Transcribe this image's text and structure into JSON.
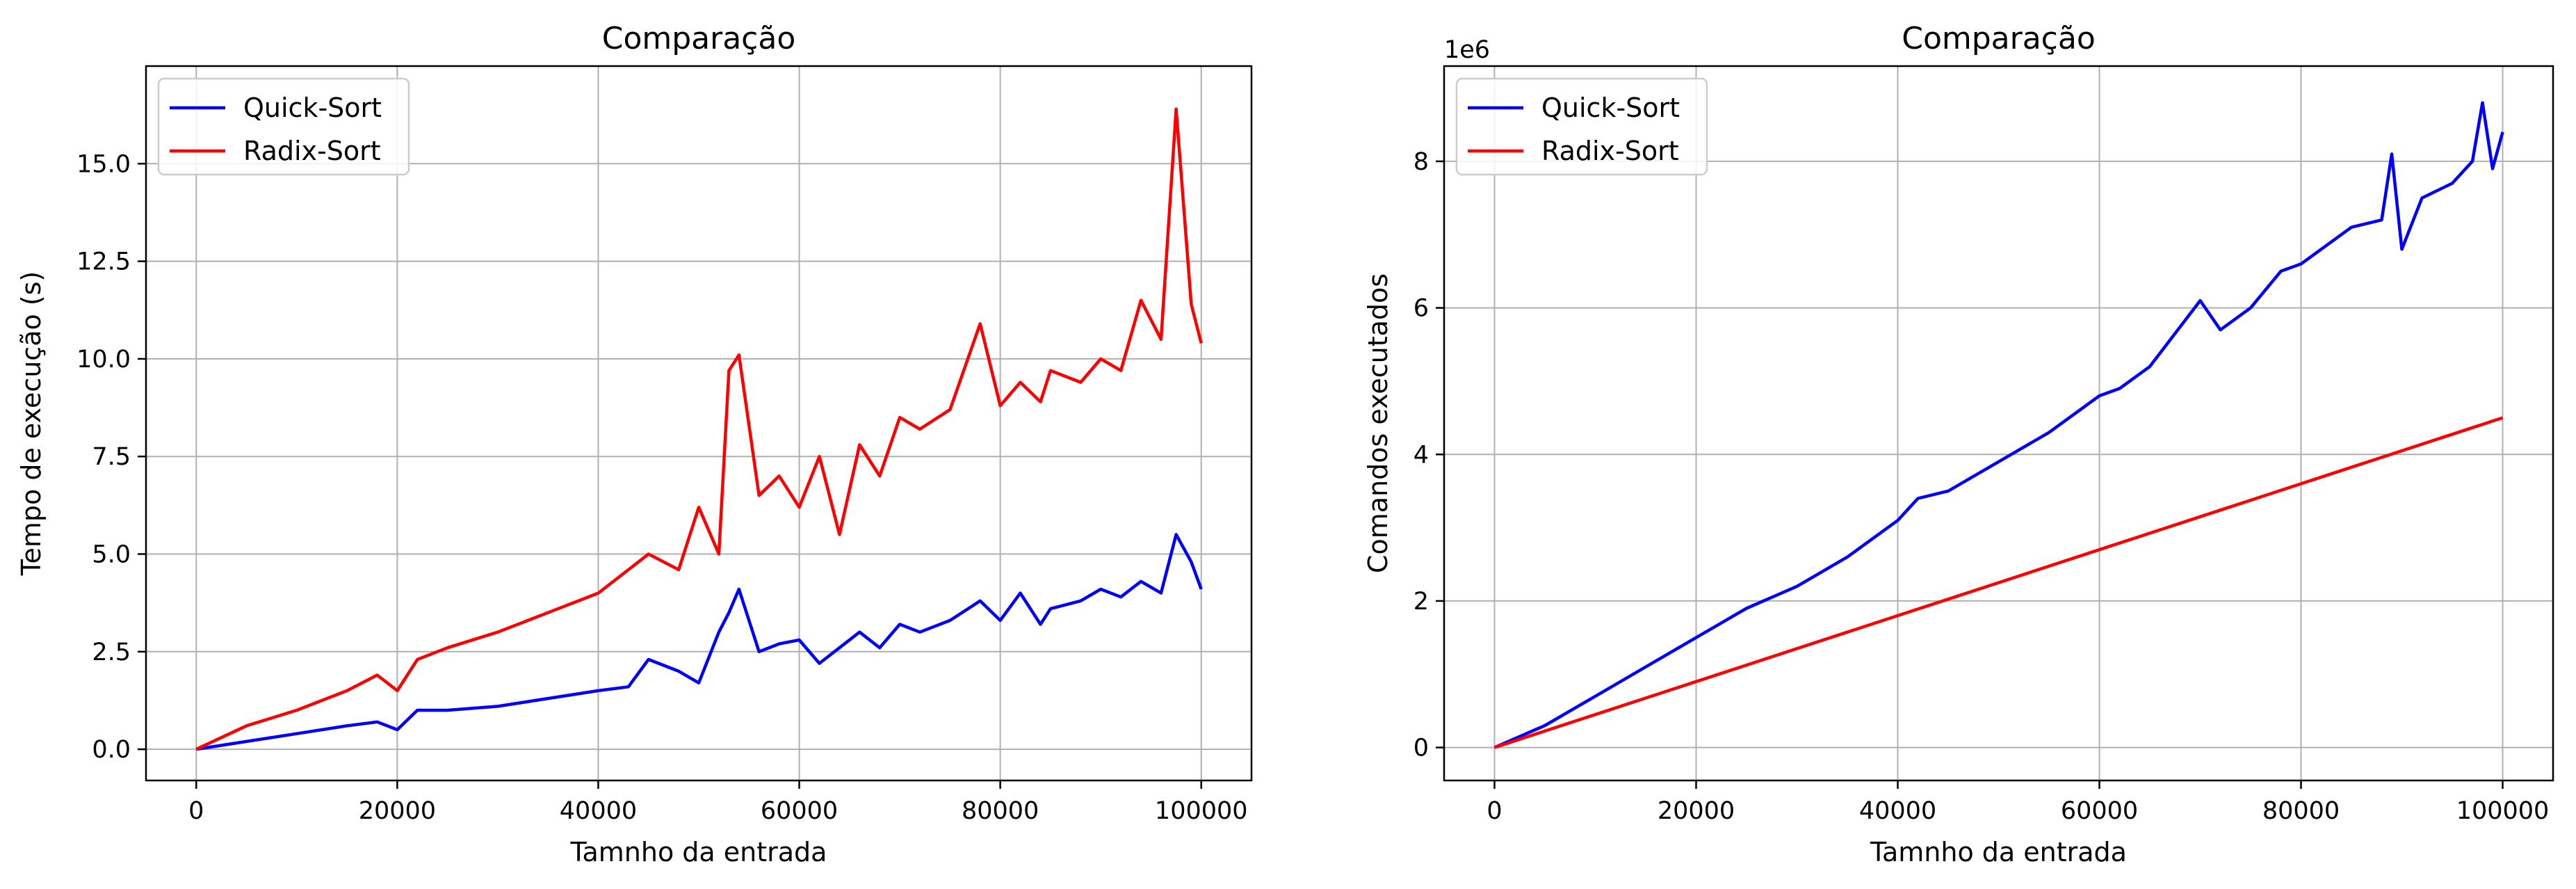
{
  "chart_data": [
    {
      "type": "line",
      "title": "Comparação",
      "xlabel": "Tamnho da entrada",
      "ylabel": "Tempo de execução (s)",
      "xlim": [
        -5000,
        105000
      ],
      "ylim": [
        -0.8,
        17.5
      ],
      "xticks": [
        0,
        20000,
        40000,
        60000,
        80000,
        100000
      ],
      "yticks": [
        0.0,
        2.5,
        5.0,
        7.5,
        10.0,
        12.5,
        15.0
      ],
      "xtick_labels": [
        "0",
        "20000",
        "40000",
        "60000",
        "80000",
        "100000"
      ],
      "ytick_labels": [
        "0.0",
        "2.5",
        "5.0",
        "7.5",
        "10.0",
        "12.5",
        "15.0"
      ],
      "grid": true,
      "legend": "upper-left",
      "x": [
        0,
        5000,
        10000,
        15000,
        18000,
        20000,
        22000,
        25000,
        30000,
        35000,
        40000,
        43000,
        45000,
        48000,
        50000,
        52000,
        53000,
        54000,
        56000,
        58000,
        60000,
        62000,
        64000,
        66000,
        68000,
        70000,
        72000,
        75000,
        78000,
        80000,
        82000,
        84000,
        85000,
        88000,
        90000,
        92000,
        94000,
        96000,
        97500,
        99000,
        100000
      ],
      "series": [
        {
          "name": "Quick-Sort",
          "color": "#0000ff",
          "values": [
            0.0,
            0.2,
            0.4,
            0.6,
            0.7,
            0.5,
            1.0,
            1.0,
            1.1,
            1.3,
            1.5,
            1.6,
            2.3,
            2.0,
            1.7,
            3.0,
            3.5,
            4.1,
            2.5,
            2.7,
            2.8,
            2.2,
            2.6,
            3.0,
            2.6,
            3.2,
            3.0,
            3.3,
            3.8,
            3.3,
            4.0,
            3.2,
            3.6,
            3.8,
            4.1,
            3.9,
            4.3,
            4.0,
            5.5,
            4.8,
            4.1
          ]
        },
        {
          "name": "Radix-Sort",
          "color": "#ff0000",
          "values": [
            0.0,
            0.6,
            1.0,
            1.5,
            1.9,
            1.5,
            2.3,
            2.6,
            3.0,
            3.5,
            4.0,
            4.6,
            5.0,
            4.6,
            6.2,
            5.0,
            9.7,
            10.1,
            6.5,
            7.0,
            6.2,
            7.5,
            5.5,
            7.8,
            7.0,
            8.5,
            8.2,
            8.7,
            10.9,
            8.8,
            9.4,
            8.9,
            9.7,
            9.4,
            10.0,
            9.7,
            11.5,
            10.5,
            16.4,
            11.4,
            10.4
          ]
        }
      ]
    },
    {
      "type": "line",
      "title": "Comparação",
      "xlabel": "Tamnho da entrada",
      "ylabel": "Comandos executados",
      "y_offset_label": "1e6",
      "xlim": [
        -5000,
        105000
      ],
      "ylim": [
        -0.45,
        9.3
      ],
      "xticks": [
        0,
        20000,
        40000,
        60000,
        80000,
        100000
      ],
      "yticks": [
        0,
        2,
        4,
        6,
        8
      ],
      "xtick_labels": [
        "0",
        "20000",
        "40000",
        "60000",
        "80000",
        "100000"
      ],
      "ytick_labels": [
        "0",
        "2",
        "4",
        "6",
        "8"
      ],
      "grid": true,
      "legend": "upper-left",
      "x": [
        0,
        5000,
        10000,
        15000,
        20000,
        25000,
        30000,
        35000,
        40000,
        42000,
        45000,
        50000,
        55000,
        60000,
        62000,
        65000,
        70000,
        72000,
        75000,
        78000,
        80000,
        85000,
        88000,
        89000,
        90000,
        92000,
        95000,
        97000,
        98000,
        99000,
        100000
      ],
      "series": [
        {
          "name": "Quick-Sort",
          "color": "#0000ff",
          "values": [
            0.0,
            0.3,
            0.7,
            1.1,
            1.5,
            1.9,
            2.2,
            2.6,
            3.1,
            3.4,
            3.5,
            3.9,
            4.3,
            4.8,
            4.9,
            5.2,
            6.1,
            5.7,
            6.0,
            6.5,
            6.6,
            7.1,
            7.2,
            8.1,
            6.8,
            7.5,
            7.7,
            8.0,
            8.8,
            7.9,
            8.4
          ]
        },
        {
          "name": "Radix-Sort",
          "color": "#ff0000",
          "values": [
            0.0,
            0.225,
            0.45,
            0.675,
            0.9,
            1.125,
            1.35,
            1.575,
            1.8,
            1.89,
            2.025,
            2.25,
            2.475,
            2.7,
            2.79,
            2.925,
            3.15,
            3.24,
            3.375,
            3.51,
            3.6,
            3.825,
            3.96,
            4.005,
            4.05,
            4.14,
            4.275,
            4.365,
            4.41,
            4.455,
            4.5
          ]
        }
      ]
    }
  ]
}
